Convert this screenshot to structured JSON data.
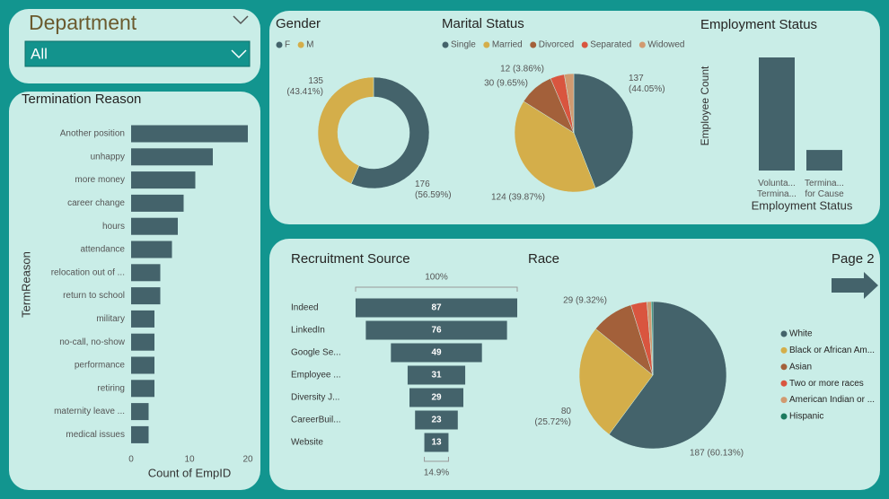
{
  "department_slicer": {
    "title": "Department",
    "selected": "All"
  },
  "navigation": {
    "label": "Page 2"
  },
  "chart_data": [
    {
      "type": "hbar",
      "title": "Termination Reason",
      "categories": [
        "Another position",
        "unhappy",
        "more money",
        "career change",
        "hours",
        "attendance",
        "relocation out of ...",
        "return to school",
        "military",
        "no-call, no-show",
        "performance",
        "retiring",
        "maternity leave ...",
        "medical issues"
      ],
      "values": [
        20,
        14,
        11,
        9,
        8,
        7,
        5,
        5,
        4,
        4,
        4,
        4,
        3,
        3
      ],
      "color": "#44636b",
      "xlim": [
        0,
        20
      ],
      "xticks": [
        0,
        10,
        20
      ],
      "grid": false,
      "x_label": "Count of EmpID",
      "y_label": "TermReason"
    },
    {
      "type": "donut",
      "title": "Gender",
      "categories": [
        "F",
        "M"
      ],
      "values": [
        176,
        135
      ],
      "value_labels": [
        "176 (56.59%)",
        "135 (43.41%)"
      ],
      "colors": [
        "#44636b",
        "#d4ae4a"
      ],
      "legend": true
    },
    {
      "type": "pie",
      "title": "Marital Status",
      "categories": [
        "Single",
        "Married",
        "Divorced",
        "Separated",
        "Widowed"
      ],
      "values": [
        137,
        124,
        30,
        12,
        8
      ],
      "value_labels": [
        "137 (44.05%)",
        "124 (39.87%)",
        "30 (9.65%)",
        "12 (3.86%)",
        null
      ],
      "colors": [
        "#44636b",
        "#d4ae4a",
        "#a3603a",
        "#d9553f",
        "#d19a70"
      ],
      "legend": true
    },
    {
      "type": "bar",
      "title": "Employment Status",
      "categories": [
        "Volunta... Termina...",
        "Termina... for Cause"
      ],
      "values": [
        88,
        16
      ],
      "color": "#44636b",
      "ylim": [
        0,
        88
      ],
      "x_label": "Employment Status",
      "y_label": "Employee Count"
    },
    {
      "type": "funnel",
      "title": "Recruitment Source",
      "categories": [
        "Indeed",
        "LinkedIn",
        "Google Se...",
        "Employee ...",
        "Diversity J...",
        "CareerBuil...",
        "Website"
      ],
      "values": [
        87,
        76,
        49,
        31,
        29,
        23,
        13
      ],
      "color": "#44636b",
      "top_label": "100%",
      "bottom_label": "14.9%"
    },
    {
      "type": "pie",
      "title": "Race",
      "categories": [
        "White",
        "Black or African Am...",
        "Asian",
        "Two or more races",
        "American Indian or ...",
        "Hispanic"
      ],
      "values": [
        187,
        80,
        29,
        11,
        3,
        1
      ],
      "value_labels": [
        "187 (60.13%)",
        "80 (25.72%)",
        "29 (9.32%)",
        null,
        null,
        null
      ],
      "colors": [
        "#44636b",
        "#d4ae4a",
        "#a3603a",
        "#d9553f",
        "#d19a70",
        "#1c7a5e"
      ],
      "legend": true
    }
  ]
}
